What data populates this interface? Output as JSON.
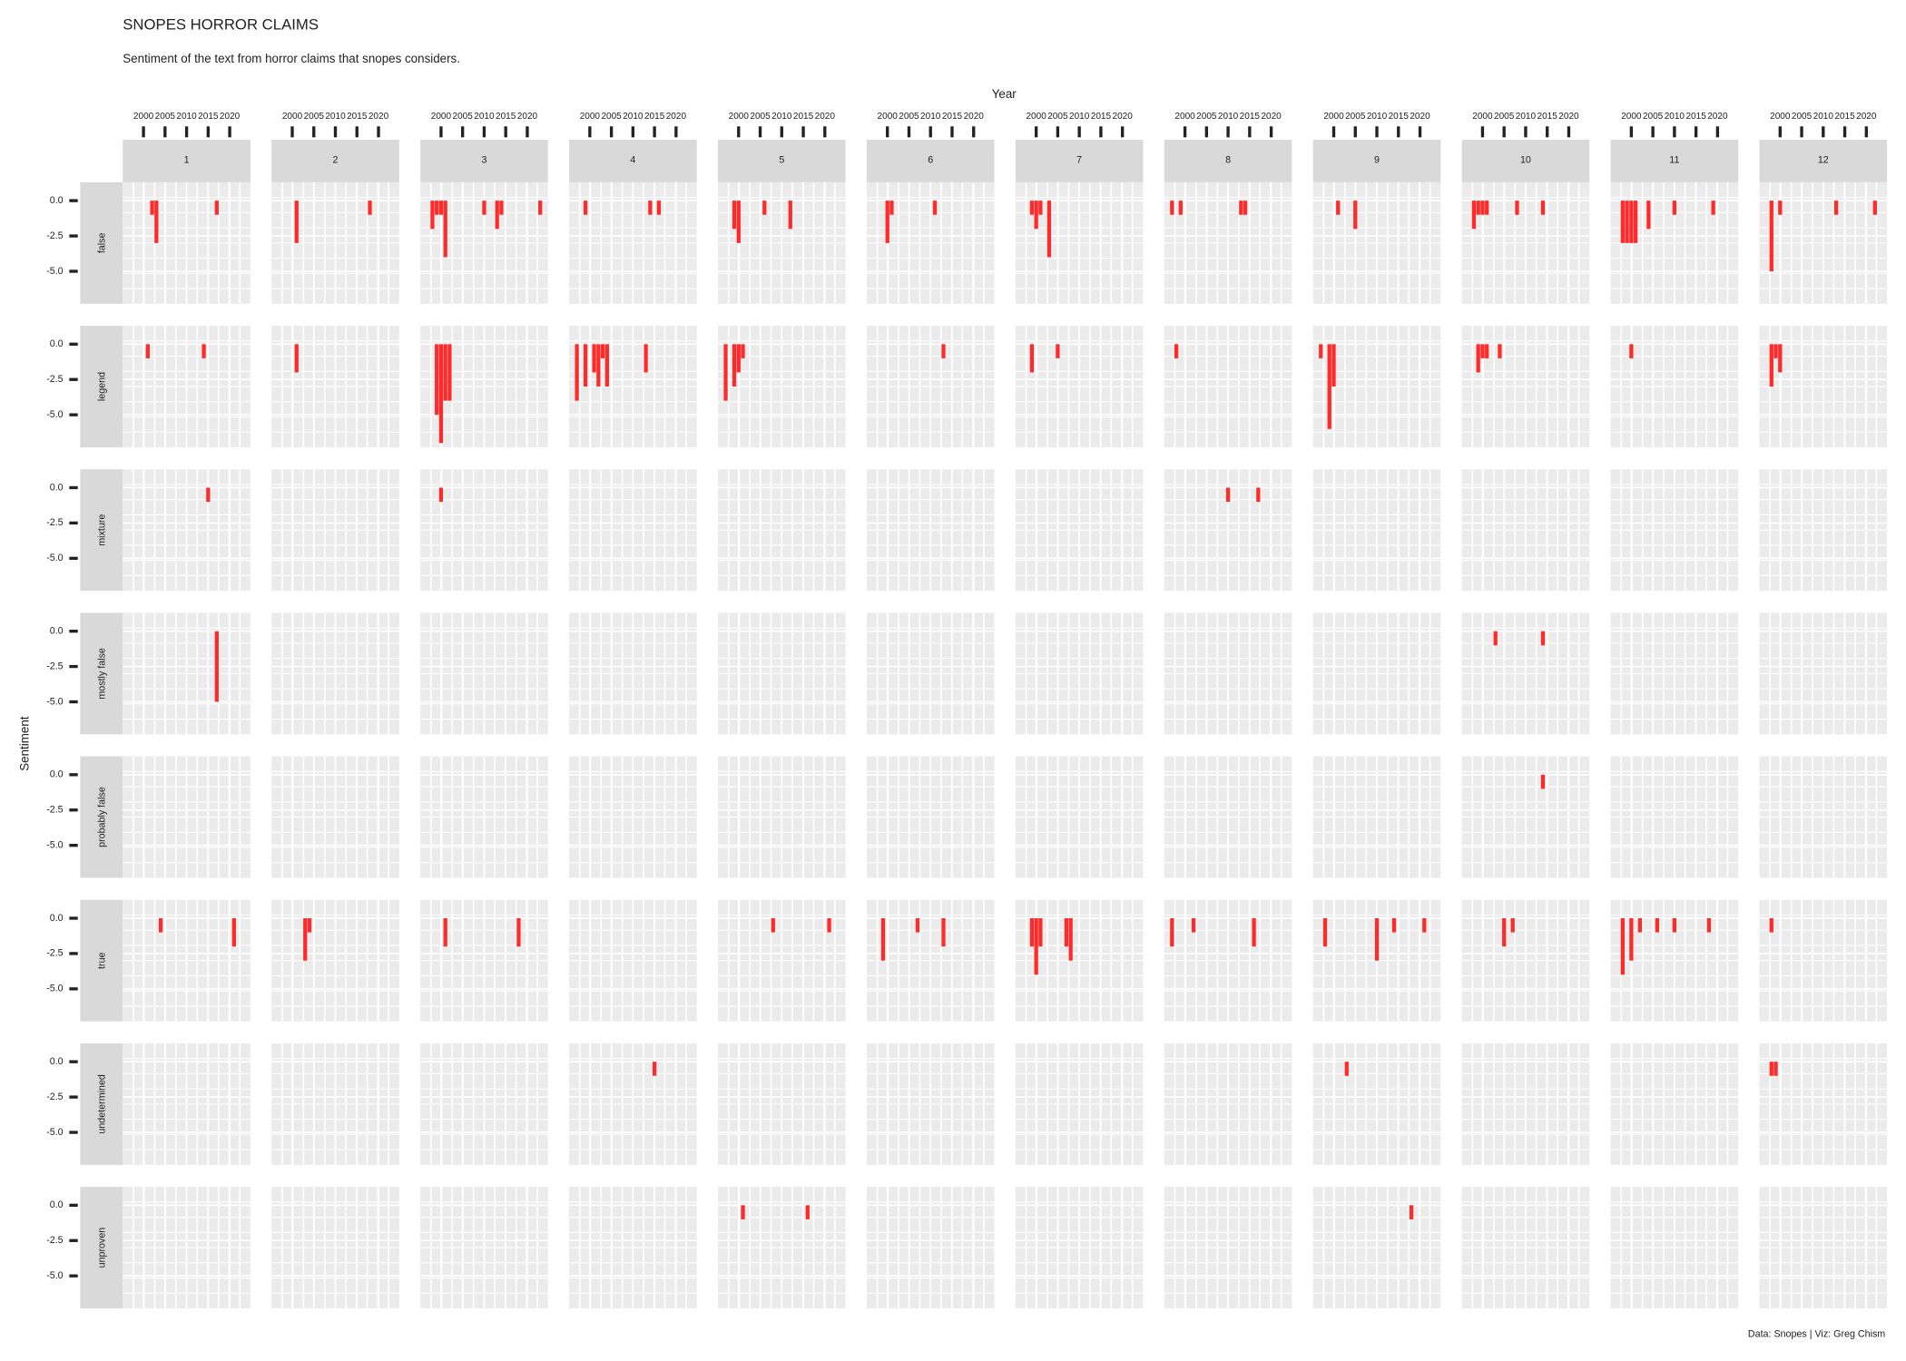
{
  "chart_data": {
    "type": "faceted-bar",
    "title": "SNOPES HORROR CLAIMS",
    "subtitle": "Sentiment of the text from horror claims that snopes considers.",
    "x_label": "Year",
    "y_label": "Sentiment",
    "caption": "Data: Snopes | Viz: Greg Chism",
    "color": "#ff2b2b",
    "columns": [
      "1",
      "2",
      "3",
      "4",
      "5",
      "6",
      "7",
      "8",
      "9",
      "10",
      "11",
      "12"
    ],
    "rows": [
      "false",
      "legend",
      "mixture",
      "mostly false",
      "probably false",
      "true",
      "undetermined",
      "unproven"
    ],
    "xlim": [
      1995.2,
      2024.8
    ],
    "xticks": [
      2000,
      2005,
      2010,
      2015,
      2020
    ],
    "ylim": [
      -7.3,
      1.3
    ],
    "yticks": [
      {
        "value": 0,
        "label": "0.0"
      },
      -2.5,
      {
        "value": -5,
        "label": "-5.0"
      }
    ],
    "grid": true,
    "panels": [
      [
        {
          "x": [
            2002,
            2003,
            2017
          ],
          "values": [
            -1,
            -3,
            -1
          ]
        },
        {
          "x": [
            2001,
            2018
          ],
          "values": [
            -3,
            -1
          ]
        },
        {
          "x": [
            1998,
            1999,
            2000,
            2001,
            2010,
            2013,
            2014,
            2023
          ],
          "values": [
            -2,
            -1,
            -1,
            -4,
            -1,
            -2,
            -1,
            -1
          ]
        },
        {
          "x": [
            1999,
            2014,
            2016
          ],
          "values": [
            -1,
            -1,
            -1
          ]
        },
        {
          "x": [
            1999,
            2000,
            2006,
            2012
          ],
          "values": [
            -2,
            -3,
            -1,
            -2
          ]
        },
        {
          "x": [
            2000,
            2001,
            2011
          ],
          "values": [
            -3,
            -1,
            -1
          ]
        },
        {
          "x": [
            1999,
            2000,
            2001,
            2003
          ],
          "values": [
            -1,
            -2,
            -1,
            -4
          ]
        },
        {
          "x": [
            1997,
            1999,
            2013,
            2014
          ],
          "values": [
            -1,
            -1,
            -1,
            -1
          ]
        },
        {
          "x": [
            2001,
            2005
          ],
          "values": [
            -1,
            -2
          ]
        },
        {
          "x": [
            1998,
            1999,
            2000,
            2001,
            2008,
            2014
          ],
          "values": [
            -2,
            -1,
            -1,
            -1,
            -1,
            -1
          ]
        },
        {
          "x": [
            1998,
            1999,
            2000,
            2001,
            2004,
            2010,
            2019
          ],
          "values": [
            -3,
            -3,
            -3,
            -3,
            -2,
            -1,
            -1
          ]
        },
        {
          "x": [
            1998,
            2000,
            2013,
            2022
          ],
          "values": [
            -5,
            -1,
            -1,
            -1
          ]
        }
      ],
      [
        {
          "x": [
            2001,
            2014
          ],
          "values": [
            -1,
            -1
          ]
        },
        {
          "x": [
            2001
          ],
          "values": [
            -2
          ]
        },
        {
          "x": [
            1999,
            2000,
            2001,
            2002
          ],
          "values": [
            -5,
            -7,
            -4,
            -4
          ]
        },
        {
          "x": [
            1997,
            1999,
            2001,
            2002,
            2003,
            2004,
            2013
          ],
          "values": [
            -4,
            -3,
            -2,
            -3,
            -1,
            -3,
            -2
          ]
        },
        {
          "x": [
            1997,
            1999,
            2000,
            2001
          ],
          "values": [
            -4,
            -3,
            -2,
            -1
          ]
        },
        {
          "x": [
            2013
          ],
          "values": [
            -1
          ]
        },
        {
          "x": [
            1999,
            2005
          ],
          "values": [
            -2,
            -1
          ]
        },
        {
          "x": [
            1998
          ],
          "values": [
            -1
          ]
        },
        {
          "x": [
            1997,
            1999,
            2000
          ],
          "values": [
            -1,
            -6,
            -3
          ]
        },
        {
          "x": [
            1999,
            2000,
            2001,
            2004
          ],
          "values": [
            -2,
            -1,
            -1,
            -1
          ]
        },
        {
          "x": [
            2000
          ],
          "values": [
            -1
          ]
        },
        {
          "x": [
            1998,
            1999,
            2000
          ],
          "values": [
            -3,
            -1,
            -2
          ]
        }
      ],
      [
        {
          "x": [
            2015
          ],
          "values": [
            -1
          ]
        },
        {
          "x": [],
          "values": []
        },
        {
          "x": [
            2000
          ],
          "values": [
            -1
          ]
        },
        {
          "x": [],
          "values": []
        },
        {
          "x": [],
          "values": []
        },
        {
          "x": [],
          "values": []
        },
        {
          "x": [],
          "values": []
        },
        {
          "x": [
            2010,
            2017
          ],
          "values": [
            -1,
            -1
          ]
        },
        {
          "x": [],
          "values": []
        },
        {
          "x": [],
          "values": []
        },
        {
          "x": [],
          "values": []
        },
        {
          "x": [],
          "values": []
        }
      ],
      [
        {
          "x": [
            2017
          ],
          "values": [
            -5
          ]
        },
        {
          "x": [],
          "values": []
        },
        {
          "x": [],
          "values": []
        },
        {
          "x": [],
          "values": []
        },
        {
          "x": [],
          "values": []
        },
        {
          "x": [],
          "values": []
        },
        {
          "x": [],
          "values": []
        },
        {
          "x": [],
          "values": []
        },
        {
          "x": [],
          "values": []
        },
        {
          "x": [
            2003,
            2014
          ],
          "values": [
            -1,
            -1
          ]
        },
        {
          "x": [],
          "values": []
        },
        {
          "x": [],
          "values": []
        }
      ],
      [
        {
          "x": [],
          "values": []
        },
        {
          "x": [],
          "values": []
        },
        {
          "x": [],
          "values": []
        },
        {
          "x": [],
          "values": []
        },
        {
          "x": [],
          "values": []
        },
        {
          "x": [],
          "values": []
        },
        {
          "x": [],
          "values": []
        },
        {
          "x": [],
          "values": []
        },
        {
          "x": [],
          "values": []
        },
        {
          "x": [
            2014
          ],
          "values": [
            -1
          ]
        },
        {
          "x": [],
          "values": []
        },
        {
          "x": [],
          "values": []
        }
      ],
      [
        {
          "x": [
            2004,
            2021
          ],
          "values": [
            -1,
            -2
          ]
        },
        {
          "x": [
            2003,
            2004
          ],
          "values": [
            -3,
            -1
          ]
        },
        {
          "x": [
            2001,
            2018
          ],
          "values": [
            -2,
            -2
          ]
        },
        {
          "x": [],
          "values": []
        },
        {
          "x": [
            2008,
            2021
          ],
          "values": [
            -1,
            -1
          ]
        },
        {
          "x": [
            1999,
            2007,
            2013
          ],
          "values": [
            -3,
            -1,
            -2
          ]
        },
        {
          "x": [
            1999,
            2000,
            2001,
            2007,
            2008
          ],
          "values": [
            -2,
            -4,
            -2,
            -2,
            -3
          ]
        },
        {
          "x": [
            1997,
            2002,
            2016
          ],
          "values": [
            -2,
            -1,
            -2
          ]
        },
        {
          "x": [
            1998,
            2010,
            2014,
            2021
          ],
          "values": [
            -2,
            -3,
            -1,
            -1
          ]
        },
        {
          "x": [
            2005,
            2007
          ],
          "values": [
            -2,
            -1
          ]
        },
        {
          "x": [
            1998,
            2000,
            2002,
            2006,
            2010,
            2018
          ],
          "values": [
            -4,
            -3,
            -1,
            -1,
            -1,
            -1
          ]
        },
        {
          "x": [
            1998
          ],
          "values": [
            -1
          ]
        }
      ],
      [
        {
          "x": [],
          "values": []
        },
        {
          "x": [],
          "values": []
        },
        {
          "x": [],
          "values": []
        },
        {
          "x": [
            2015
          ],
          "values": [
            -1
          ]
        },
        {
          "x": [],
          "values": []
        },
        {
          "x": [],
          "values": []
        },
        {
          "x": [],
          "values": []
        },
        {
          "x": [],
          "values": []
        },
        {
          "x": [
            2003
          ],
          "values": [
            -1
          ]
        },
        {
          "x": [],
          "values": []
        },
        {
          "x": [],
          "values": []
        },
        {
          "x": [
            1998,
            1999
          ],
          "values": [
            -1,
            -1
          ]
        }
      ],
      [
        {
          "x": [],
          "values": []
        },
        {
          "x": [],
          "values": []
        },
        {
          "x": [],
          "values": []
        },
        {
          "x": [],
          "values": []
        },
        {
          "x": [
            2001,
            2016
          ],
          "values": [
            -1,
            -1
          ]
        },
        {
          "x": [],
          "values": []
        },
        {
          "x": [],
          "values": []
        },
        {
          "x": [],
          "values": []
        },
        {
          "x": [
            2018
          ],
          "values": [
            -1
          ]
        },
        {
          "x": [],
          "values": []
        },
        {
          "x": [],
          "values": []
        },
        {
          "x": [],
          "values": []
        }
      ]
    ]
  }
}
